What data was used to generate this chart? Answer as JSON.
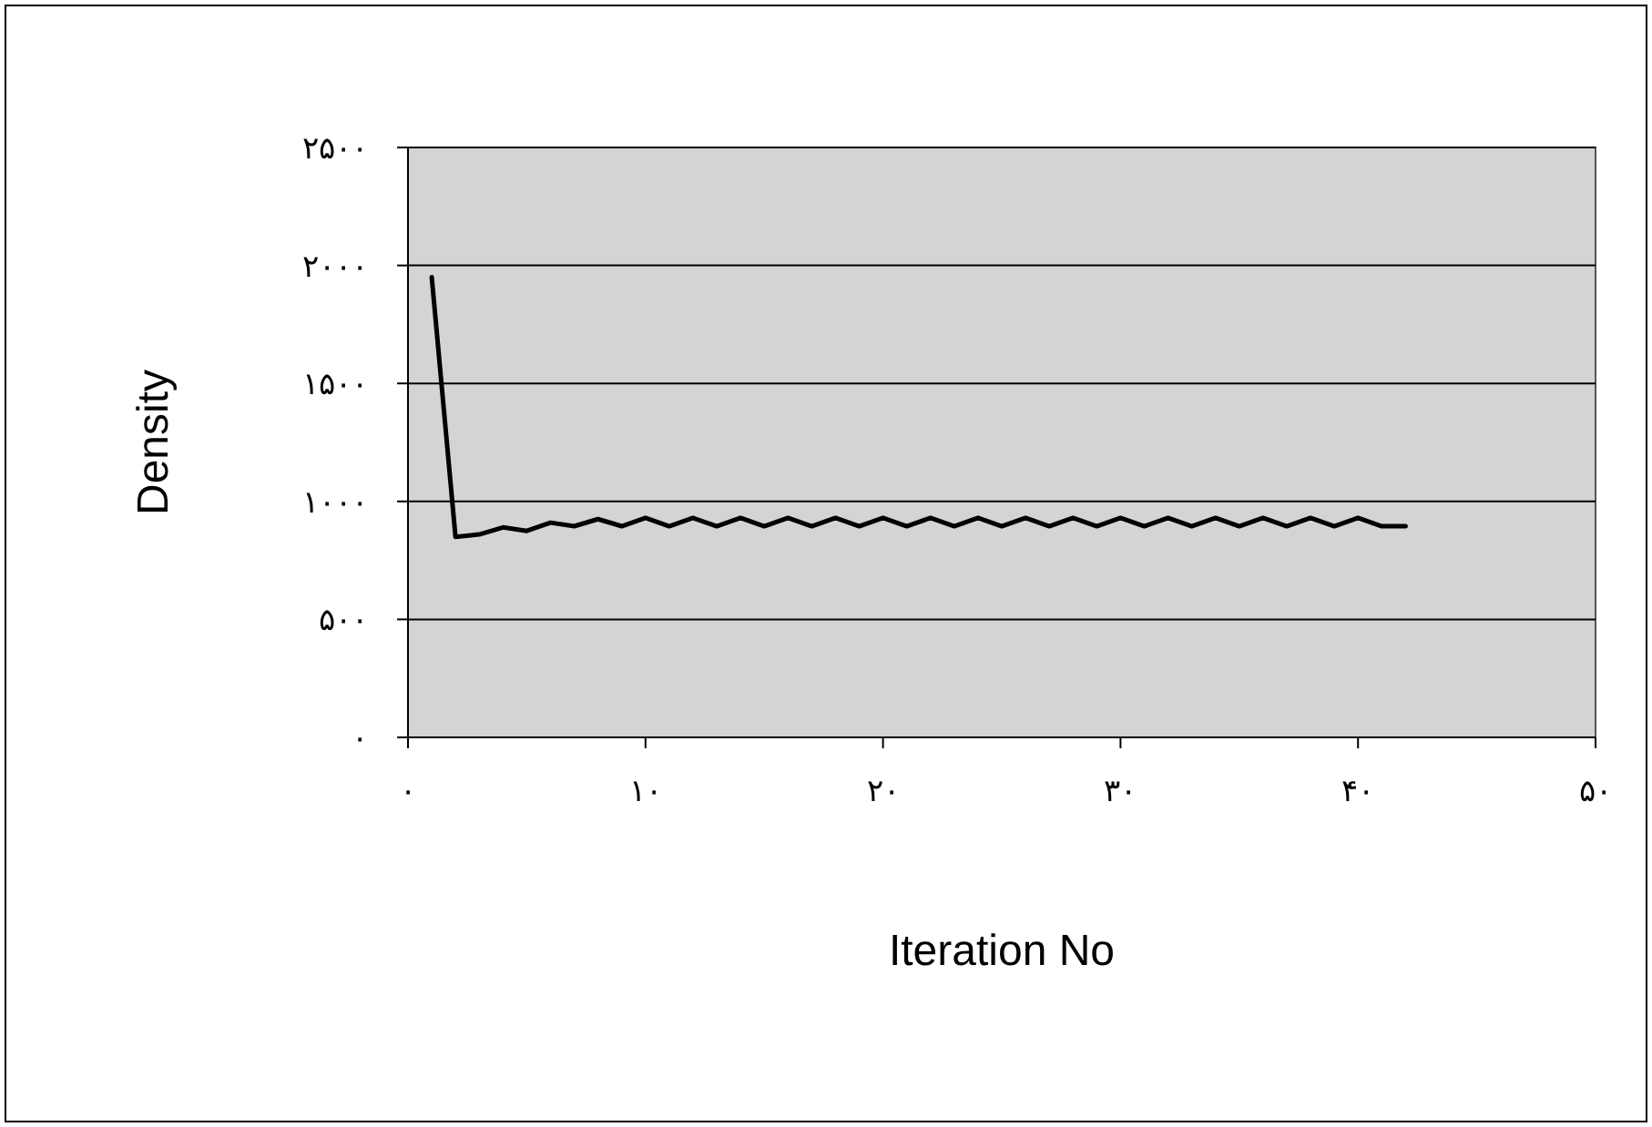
{
  "chart_data": {
    "type": "line",
    "xlabel": "Iteration No",
    "ylabel": "Density",
    "x": [
      1,
      2,
      3,
      4,
      5,
      6,
      7,
      8,
      9,
      10,
      11,
      12,
      13,
      14,
      15,
      16,
      17,
      18,
      19,
      20,
      21,
      22,
      23,
      24,
      25,
      26,
      27,
      28,
      29,
      30,
      31,
      32,
      33,
      34,
      35,
      36,
      37,
      38,
      39,
      40,
      41,
      42
    ],
    "series": [
      {
        "color": "#000000",
        "values": [
          1950,
          850,
          860,
          890,
          875,
          910,
          895,
          925,
          895,
          930,
          895,
          930,
          895,
          930,
          895,
          930,
          895,
          930,
          895,
          930,
          895,
          930,
          895,
          930,
          895,
          930,
          895,
          930,
          895,
          930,
          895,
          930,
          895,
          930,
          895,
          930,
          895,
          930,
          895,
          930,
          895,
          895
        ]
      }
    ],
    "xlim": [
      0,
      50
    ],
    "xticks": [
      {
        "value": 0,
        "label": "۰"
      },
      {
        "value": 10,
        "label": "۱۰"
      },
      {
        "value": 20,
        "label": "۲۰"
      },
      {
        "value": 30,
        "label": "۳۰"
      },
      {
        "value": 40,
        "label": "۴۰"
      },
      {
        "value": 50,
        "label": "۵۰"
      }
    ],
    "ylim": [
      0,
      2500
    ],
    "yticks": [
      {
        "value": 0,
        "label": "۰"
      },
      {
        "value": 500,
        "label": "۵۰۰"
      },
      {
        "value": 1000,
        "label": "۱۰۰۰"
      },
      {
        "value": 1500,
        "label": "۱۵۰۰"
      },
      {
        "value": 2000,
        "label": "۲۰۰۰"
      },
      {
        "value": 2500,
        "label": "۲۵۰۰"
      }
    ],
    "grid": "y",
    "marker": "none",
    "line_style": "solid"
  }
}
